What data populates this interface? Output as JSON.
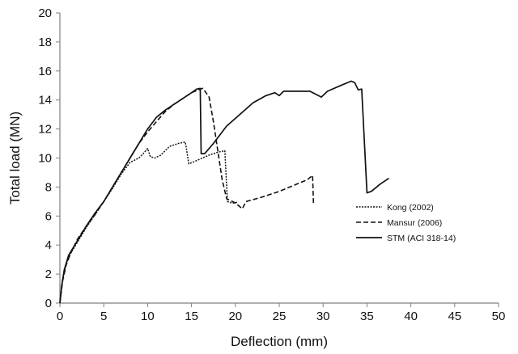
{
  "chart_data": {
    "type": "line",
    "title": "",
    "xlabel": "Deflection (mm)",
    "ylabel": "Total load (MN)",
    "xlim": [
      0,
      50
    ],
    "ylim": [
      0,
      20
    ],
    "xticks": [
      "0",
      "5",
      "10",
      "15",
      "20",
      "25",
      "30",
      "35",
      "40",
      "45",
      "50"
    ],
    "yticks": [
      "0",
      "2",
      "4",
      "6",
      "8",
      "10",
      "12",
      "14",
      "16",
      "18",
      "20"
    ],
    "grid": false,
    "legend_position": "right",
    "series": [
      {
        "name": "Kong (2002)",
        "style": "dotted",
        "points": [
          [
            0,
            0
          ],
          [
            0.3,
            1.6
          ],
          [
            0.7,
            2.7
          ],
          [
            1.2,
            3.4
          ],
          [
            2,
            4.2
          ],
          [
            3,
            5.2
          ],
          [
            4,
            6.1
          ],
          [
            5,
            7.0
          ],
          [
            6,
            7.9
          ],
          [
            7,
            8.9
          ],
          [
            7.5,
            9.3
          ],
          [
            8,
            9.7
          ],
          [
            9,
            10.0
          ],
          [
            9.5,
            10.3
          ],
          [
            10,
            10.65
          ],
          [
            10.3,
            10.1
          ],
          [
            10.8,
            10.0
          ],
          [
            11.5,
            10.2
          ],
          [
            12.5,
            10.8
          ],
          [
            13.5,
            11.0
          ],
          [
            14.3,
            11.1
          ],
          [
            14.7,
            9.6
          ],
          [
            15.5,
            9.8
          ],
          [
            17,
            10.2
          ],
          [
            18,
            10.4
          ],
          [
            18.8,
            10.5
          ],
          [
            19.1,
            7.0
          ],
          [
            19.6,
            6.9
          ],
          [
            20.0,
            6.9
          ],
          [
            20.3,
            7.0
          ]
        ]
      },
      {
        "name": "Mansur (2006)",
        "style": "dashed",
        "points": [
          [
            0,
            0
          ],
          [
            0.3,
            1.5
          ],
          [
            0.7,
            2.6
          ],
          [
            1.2,
            3.4
          ],
          [
            2,
            4.4
          ],
          [
            3,
            5.3
          ],
          [
            4,
            6.1
          ],
          [
            5,
            7.0
          ],
          [
            6,
            8.0
          ],
          [
            7,
            9.0
          ],
          [
            8,
            10.0
          ],
          [
            9,
            11.0
          ],
          [
            10,
            11.8
          ],
          [
            11,
            12.5
          ],
          [
            12,
            13.2
          ],
          [
            13,
            13.7
          ],
          [
            14,
            14.1
          ],
          [
            15,
            14.5
          ],
          [
            15.8,
            14.7
          ],
          [
            16.3,
            14.8
          ],
          [
            17,
            14.2
          ],
          [
            17.5,
            12.5
          ],
          [
            18,
            10.5
          ],
          [
            18.5,
            8.5
          ],
          [
            19,
            7.2
          ],
          [
            20,
            6.9
          ],
          [
            20.8,
            6.5
          ],
          [
            21.2,
            7.0
          ],
          [
            23,
            7.3
          ],
          [
            25,
            7.7
          ],
          [
            27,
            8.2
          ],
          [
            28.2,
            8.5
          ],
          [
            28.8,
            8.8
          ],
          [
            28.9,
            6.9
          ]
        ]
      },
      {
        "name": "STM (ACI 318-14)",
        "style": "solid",
        "points": [
          [
            0,
            0
          ],
          [
            0.2,
            1.2
          ],
          [
            0.5,
            2.3
          ],
          [
            1,
            3.3
          ],
          [
            2,
            4.3
          ],
          [
            3,
            5.3
          ],
          [
            4,
            6.2
          ],
          [
            5,
            7.0
          ],
          [
            6,
            8.0
          ],
          [
            7,
            9.0
          ],
          [
            8,
            10.0
          ],
          [
            9,
            11.0
          ],
          [
            10,
            12.0
          ],
          [
            11,
            12.8
          ],
          [
            12,
            13.3
          ],
          [
            13,
            13.7
          ],
          [
            14,
            14.1
          ],
          [
            15,
            14.5
          ],
          [
            15.6,
            14.75
          ],
          [
            16.0,
            14.8
          ],
          [
            16.1,
            10.3
          ],
          [
            16.5,
            10.3
          ],
          [
            17.5,
            11.0
          ],
          [
            19,
            12.2
          ],
          [
            20.5,
            13.0
          ],
          [
            22,
            13.8
          ],
          [
            23.5,
            14.3
          ],
          [
            24.5,
            14.5
          ],
          [
            25,
            14.3
          ],
          [
            25.5,
            14.6
          ],
          [
            27,
            14.6
          ],
          [
            28.5,
            14.6
          ],
          [
            29.8,
            14.2
          ],
          [
            30.5,
            14.6
          ],
          [
            32,
            15.0
          ],
          [
            33.2,
            15.3
          ],
          [
            33.6,
            15.2
          ],
          [
            34,
            14.7
          ],
          [
            34.4,
            14.75
          ],
          [
            35,
            7.6
          ],
          [
            35.5,
            7.7
          ],
          [
            36.5,
            8.2
          ],
          [
            37.5,
            8.6
          ]
        ]
      }
    ]
  }
}
